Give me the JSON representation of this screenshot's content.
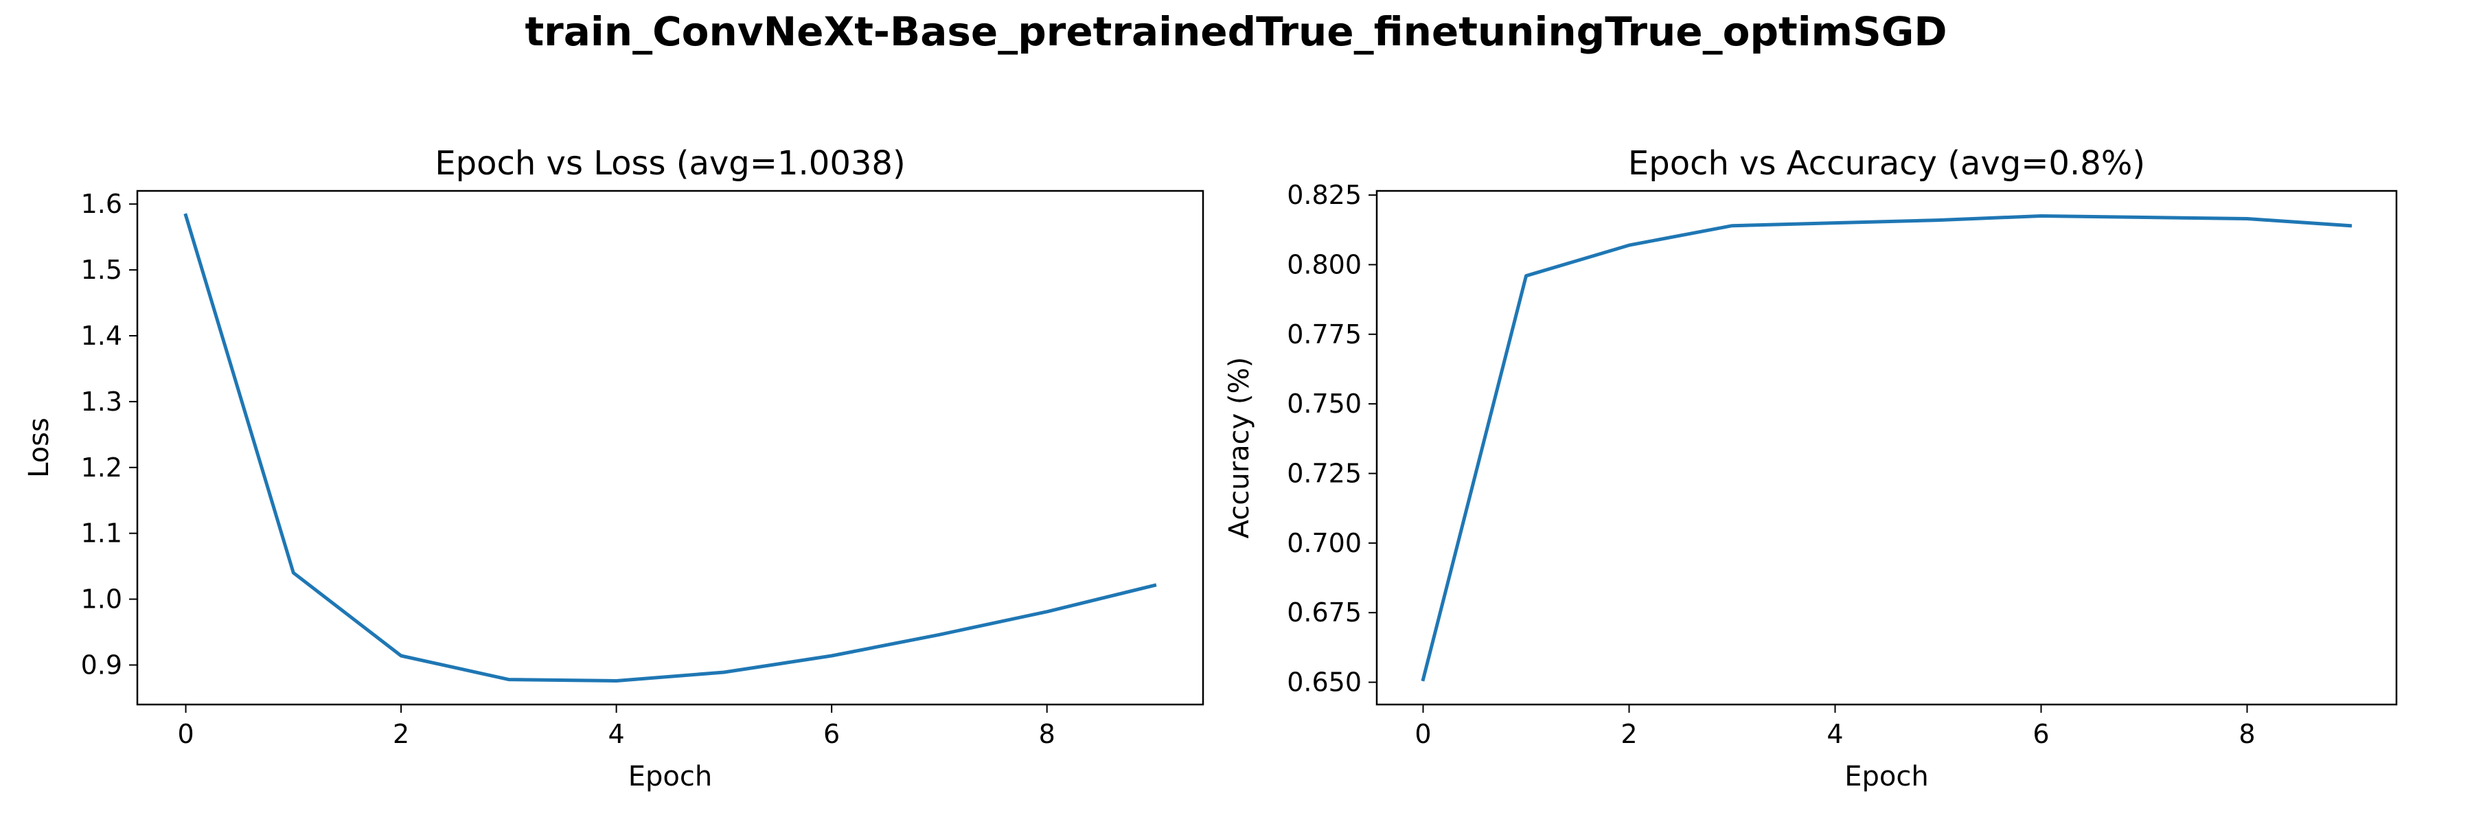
{
  "figure": {
    "suptitle": "train_ConvNeXt-Base_pretrainedTrue_finetuningTrue_optimSGD"
  },
  "chart_data": [
    {
      "type": "line",
      "title": "Epoch vs Loss (avg=1.0038)",
      "xlabel": "Epoch",
      "ylabel": "Loss",
      "xlim": [
        -0.45,
        9.45
      ],
      "ylim": [
        0.84,
        1.62
      ],
      "xticks": [
        0,
        2,
        4,
        6,
        8
      ],
      "xtick_labels": [
        "0",
        "2",
        "4",
        "6",
        "8"
      ],
      "yticks": [
        0.9,
        1.0,
        1.1,
        1.2,
        1.3,
        1.4,
        1.5,
        1.6
      ],
      "ytick_labels": [
        "0.9",
        "1.0",
        "1.1",
        "1.2",
        "1.3",
        "1.4",
        "1.5",
        "1.6"
      ],
      "grid": false,
      "color": "#1f77b4",
      "series": [
        {
          "x": [
            0,
            1,
            2,
            3,
            4,
            5,
            6,
            7,
            8,
            9
          ],
          "values": [
            1.583,
            1.04,
            0.914,
            0.878,
            0.876,
            0.889,
            0.914,
            0.946,
            0.981,
            1.021
          ]
        }
      ]
    },
    {
      "type": "line",
      "title": "Epoch vs Accuracy (avg=0.8%)",
      "xlabel": "Epoch",
      "ylabel": "Accuracy (%)",
      "xlim": [
        -0.45,
        9.45
      ],
      "ylim": [
        0.642,
        0.8265
      ],
      "xticks": [
        0,
        2,
        4,
        6,
        8
      ],
      "xtick_labels": [
        "0",
        "2",
        "4",
        "6",
        "8"
      ],
      "yticks": [
        0.65,
        0.675,
        0.7,
        0.725,
        0.75,
        0.775,
        0.8,
        0.825
      ],
      "ytick_labels": [
        "0.650",
        "0.675",
        "0.700",
        "0.725",
        "0.750",
        "0.775",
        "0.800",
        "0.825"
      ],
      "grid": false,
      "color": "#1f77b4",
      "series": [
        {
          "x": [
            0,
            1,
            2,
            3,
            4,
            5,
            6,
            7,
            8,
            9
          ],
          "values": [
            0.651,
            0.796,
            0.807,
            0.814,
            0.815,
            0.816,
            0.8175,
            0.817,
            0.8165,
            0.814
          ]
        }
      ]
    }
  ]
}
